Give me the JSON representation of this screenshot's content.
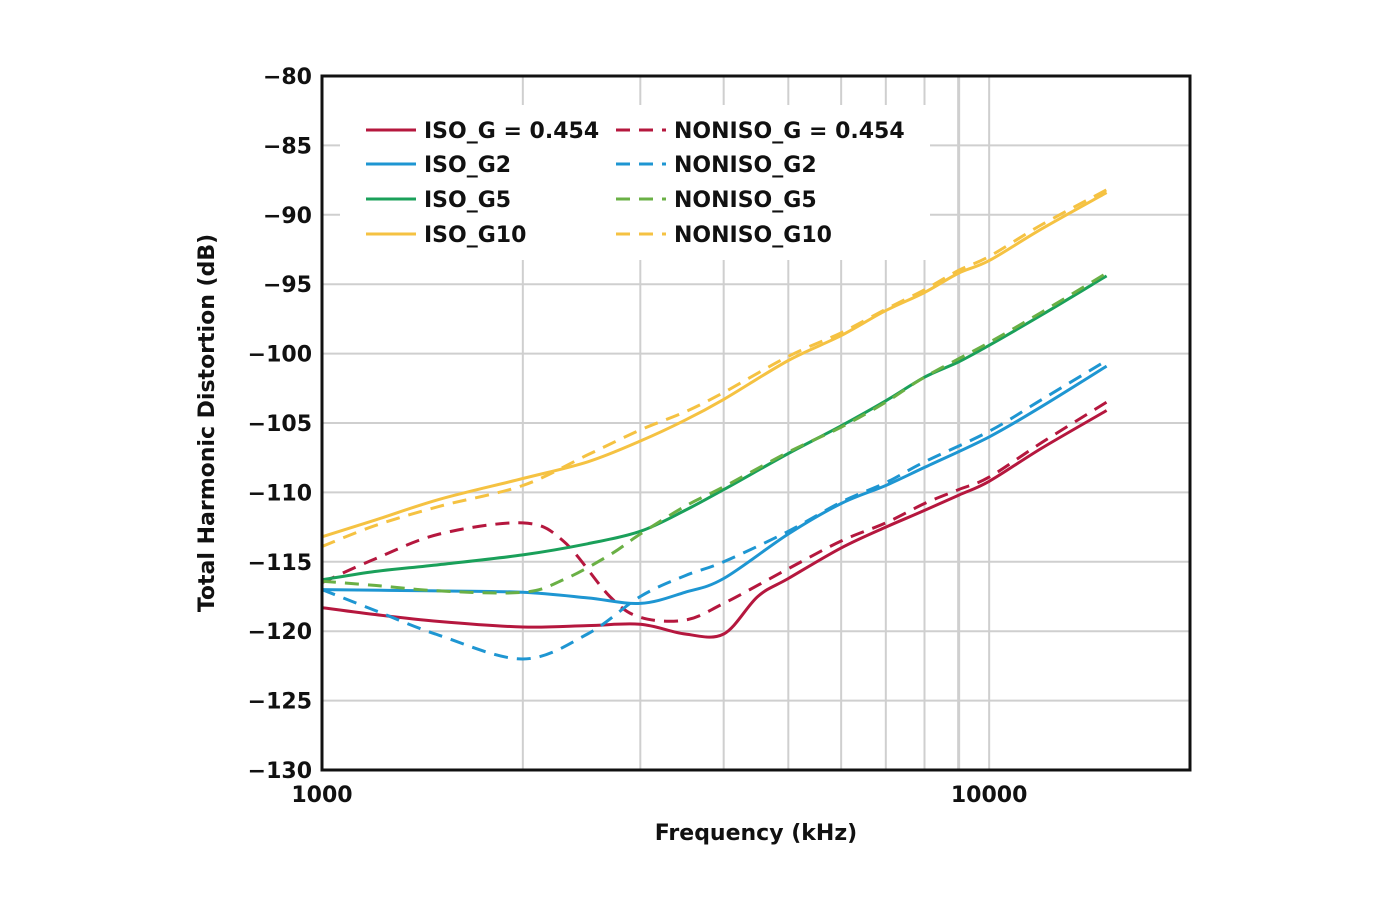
{
  "chart_data": {
    "type": "line",
    "title": "",
    "xlabel": "Frequency (kHz)",
    "ylabel": "Total Harmonic Distortion (dB)",
    "x_scale": "log",
    "xlim": [
      1000,
      20000
    ],
    "ylim": [
      -130,
      -80
    ],
    "x_tick_labels": [
      {
        "value": 1000,
        "label": "1000"
      },
      {
        "value": 10000,
        "label": "10000"
      }
    ],
    "y_ticks": [
      -80,
      -85,
      -90,
      -95,
      -100,
      -105,
      -110,
      -115,
      -120,
      -125,
      -130
    ],
    "y_tick_labels": [
      "−80",
      "−85",
      "−90",
      "−95",
      "−100",
      "−105",
      "−110",
      "−115",
      "−120",
      "−125",
      "−130"
    ],
    "grid": true,
    "legend_position": "top-left",
    "series": [
      {
        "name": "ISO_G = 0.454",
        "color": "#b5173e",
        "dash": "solid",
        "x": [
          1000,
          1200,
          1500,
          2000,
          2500,
          3000,
          3500,
          4000,
          4500,
          5000,
          6000,
          7000,
          8000,
          9000,
          10000,
          12000,
          15000
        ],
        "y": [
          -118.3,
          -118.8,
          -119.3,
          -119.7,
          -119.6,
          -119.5,
          -120.2,
          -120.2,
          -117.5,
          -116.2,
          -114.0,
          -112.5,
          -111.3,
          -110.2,
          -109.2,
          -106.8,
          -104.1
        ]
      },
      {
        "name": "NONISO_G = 0.454",
        "color": "#b5173e",
        "dash": "dashed",
        "x": [
          1000,
          1200,
          1500,
          2000,
          2300,
          2700,
          3000,
          3500,
          4000,
          5000,
          6000,
          7000,
          8000,
          9000,
          10000,
          12000,
          15000
        ],
        "y": [
          -116.5,
          -114.8,
          -113.0,
          -112.2,
          -113.5,
          -117.5,
          -119.0,
          -119.2,
          -118.0,
          -115.5,
          -113.5,
          -112.2,
          -110.8,
          -109.8,
          -108.9,
          -106.4,
          -103.5
        ]
      },
      {
        "name": "ISO_G2",
        "color": "#1e96d2",
        "dash": "solid",
        "x": [
          1000,
          1500,
          2000,
          2500,
          3000,
          3500,
          4000,
          5000,
          6000,
          7000,
          8000,
          10000,
          12000,
          15000
        ],
        "y": [
          -117.0,
          -117.1,
          -117.2,
          -117.6,
          -118.0,
          -117.2,
          -116.2,
          -113.0,
          -110.8,
          -109.5,
          -108.2,
          -106.0,
          -103.8,
          -100.9
        ]
      },
      {
        "name": "NONISO_G2",
        "color": "#1e96d2",
        "dash": "dashed",
        "x": [
          1000,
          1200,
          1500,
          2000,
          2500,
          3000,
          3500,
          4000,
          5000,
          6000,
          7000,
          8000,
          10000,
          12000,
          15000
        ],
        "y": [
          -117.0,
          -118.5,
          -120.3,
          -122.0,
          -120.2,
          -117.5,
          -116.0,
          -115.0,
          -112.8,
          -110.7,
          -109.3,
          -107.8,
          -105.6,
          -103.3,
          -100.5
        ]
      },
      {
        "name": "ISO_G5",
        "color": "#1aa05a",
        "dash": "solid",
        "x": [
          1000,
          1200,
          1500,
          2000,
          2500,
          3000,
          3500,
          4000,
          5000,
          6000,
          7000,
          8000,
          9000,
          10000,
          12000,
          15000
        ],
        "y": [
          -116.3,
          -115.7,
          -115.2,
          -114.5,
          -113.7,
          -112.8,
          -111.3,
          -109.8,
          -107.2,
          -105.2,
          -103.4,
          -101.7,
          -100.6,
          -99.4,
          -97.2,
          -94.4
        ]
      },
      {
        "name": "NONISO_G5",
        "color": "#6ab045",
        "dash": "dashed",
        "x": [
          1000,
          1200,
          1500,
          2000,
          2300,
          2700,
          3000,
          3500,
          4000,
          5000,
          6000,
          7000,
          8000,
          10000,
          12000,
          15000
        ],
        "y": [
          -116.4,
          -116.7,
          -117.1,
          -117.2,
          -116.3,
          -114.5,
          -113.0,
          -111.0,
          -109.6,
          -107.1,
          -105.3,
          -103.5,
          -101.7,
          -99.2,
          -97.0,
          -94.2
        ]
      },
      {
        "name": "ISO_G10",
        "color": "#f5c242",
        "dash": "solid",
        "x": [
          1000,
          1200,
          1500,
          2000,
          2500,
          3000,
          3500,
          4000,
          5000,
          6000,
          7000,
          8000,
          9000,
          10000,
          12000,
          15000
        ],
        "y": [
          -113.2,
          -112.0,
          -110.5,
          -109.0,
          -107.8,
          -106.3,
          -104.8,
          -103.3,
          -100.5,
          -98.7,
          -96.9,
          -95.6,
          -94.2,
          -93.3,
          -91.0,
          -88.4
        ]
      },
      {
        "name": "NONISO_G10",
        "color": "#f5c242",
        "dash": "dashed",
        "x": [
          1000,
          1200,
          1500,
          2000,
          2500,
          3000,
          3500,
          4000,
          5000,
          6000,
          7000,
          8000,
          9000,
          10000,
          12000,
          15000
        ],
        "y": [
          -113.9,
          -112.4,
          -111.0,
          -109.5,
          -107.3,
          -105.5,
          -104.2,
          -102.8,
          -100.2,
          -98.5,
          -96.8,
          -95.4,
          -94.0,
          -93.0,
          -90.7,
          -88.2
        ]
      }
    ]
  }
}
